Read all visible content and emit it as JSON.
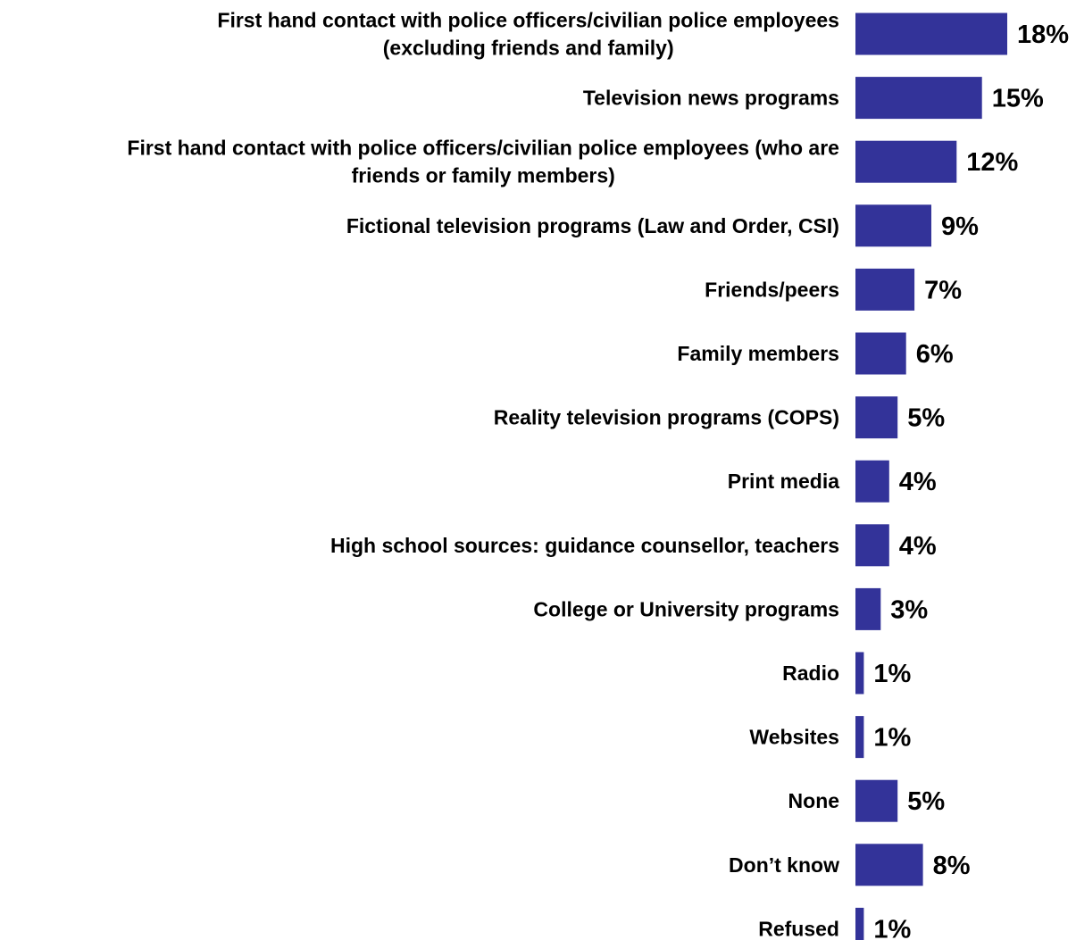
{
  "chart_data": {
    "type": "bar",
    "orientation": "horizontal",
    "title": "",
    "xlabel": "",
    "ylabel": "",
    "bar_color": "#333399",
    "xlim": [
      0,
      18
    ],
    "grid": false,
    "legend": "none",
    "categories": [
      [
        "First hand contact with police officers/civilian police employees",
        "(excluding friends and family)"
      ],
      [
        "Television news programs"
      ],
      [
        "First hand contact with police officers/civilian police employees (who are",
        "friends or family members)"
      ],
      [
        "Fictional television programs (Law and Order, CSI)"
      ],
      [
        "Friends/peers"
      ],
      [
        "Family members"
      ],
      [
        "Reality television programs (COPS)"
      ],
      [
        "Print media"
      ],
      [
        "High school sources: guidance counsellor, teachers"
      ],
      [
        "College or University programs"
      ],
      [
        "Radio"
      ],
      [
        "Websites"
      ],
      [
        "None"
      ],
      [
        "Don’t know"
      ],
      [
        "Refused"
      ]
    ],
    "values": [
      18,
      15,
      12,
      9,
      7,
      6,
      5,
      4,
      4,
      3,
      1,
      1,
      5,
      8,
      1
    ],
    "value_labels": [
      "18%",
      "15%",
      "12%",
      "9%",
      "7%",
      "6%",
      "5%",
      "4%",
      "4%",
      "3%",
      "1%",
      "1%",
      "5%",
      "8%",
      "1%"
    ]
  }
}
